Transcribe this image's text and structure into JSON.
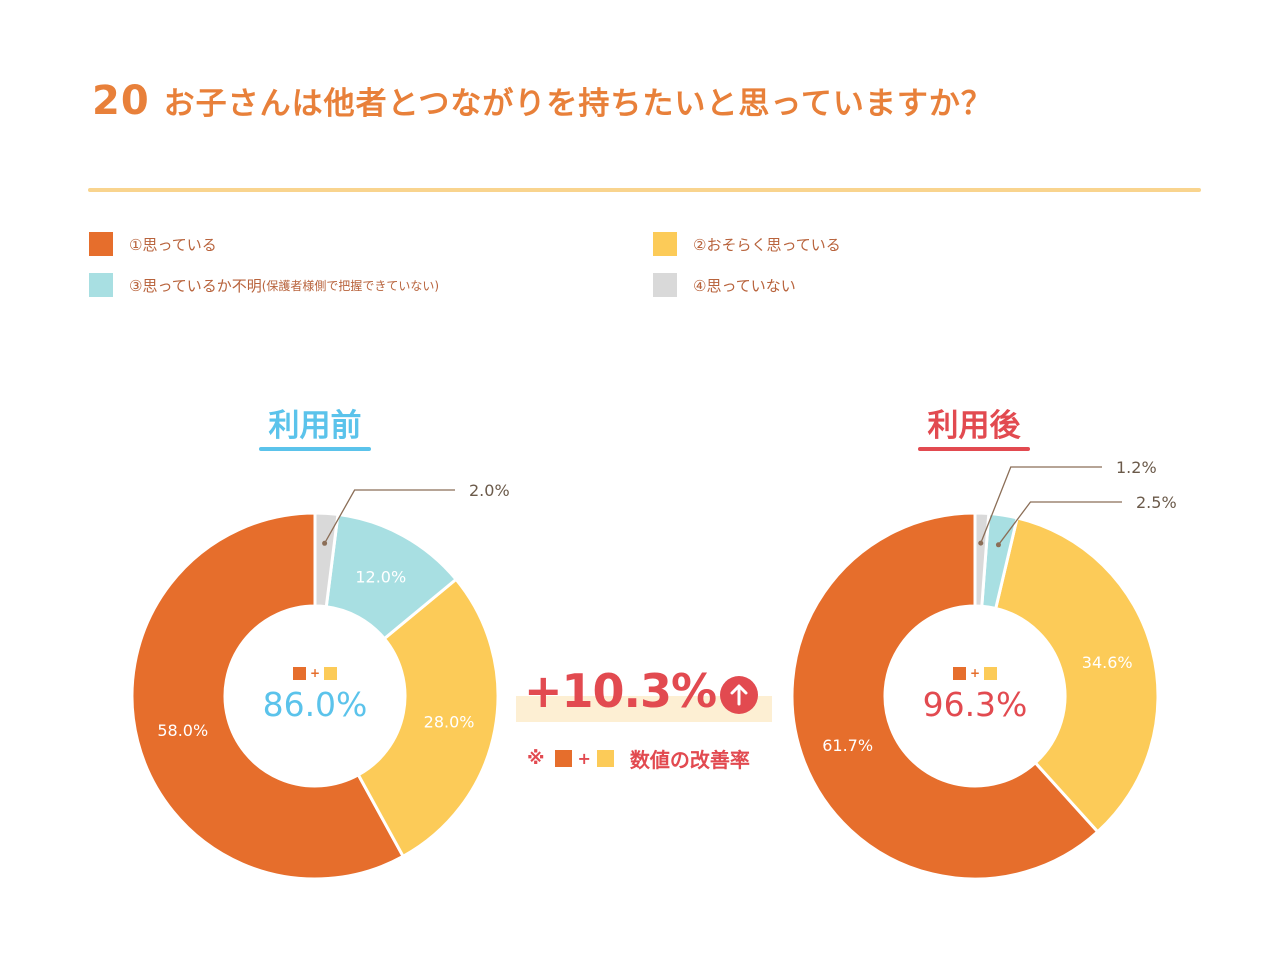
{
  "header": {
    "number": "20",
    "question": "お子さんは他者とつながりを持ちたいと思っていますか？"
  },
  "legend": [
    {
      "label": "①思っている",
      "note": "",
      "color": "#E66E2C"
    },
    {
      "label": "②おそらく思っている",
      "note": "",
      "color": "#FCCB58"
    },
    {
      "label": "③思っているか不明",
      "note": "(保護者様側で把握できていない)",
      "color": "#A8DFE2"
    },
    {
      "label": "④思っていない",
      "note": "",
      "color": "#D9D9D9"
    }
  ],
  "chart_data": [
    {
      "type": "pie",
      "style": "donut",
      "title": "利用前",
      "title_color": "#5BC3EB",
      "categories": [
        "①思っている",
        "②おそらく思っている",
        "③思っているか不明",
        "④思っていない"
      ],
      "values": [
        58.0,
        28.0,
        12.0,
        2.0
      ],
      "labels": [
        "58.0%",
        "28.0%",
        "12.0%",
        "2.0%"
      ],
      "center_value": "86.0%"
    },
    {
      "type": "pie",
      "style": "donut",
      "title": "利用後",
      "title_color": "#E24A50",
      "categories": [
        "①思っている",
        "②おそらく思っている",
        "③思っているか不明",
        "④思っていない"
      ],
      "values": [
        61.7,
        34.6,
        2.5,
        1.2
      ],
      "labels": [
        "61.7%",
        "34.6%",
        "2.5%",
        "1.2%"
      ],
      "center_value": "96.3%"
    }
  ],
  "center_plus": "+",
  "improvement": {
    "value": "+10.3%",
    "note_mark": "※",
    "note_plus": "+",
    "note_text": "数値の改善率"
  }
}
